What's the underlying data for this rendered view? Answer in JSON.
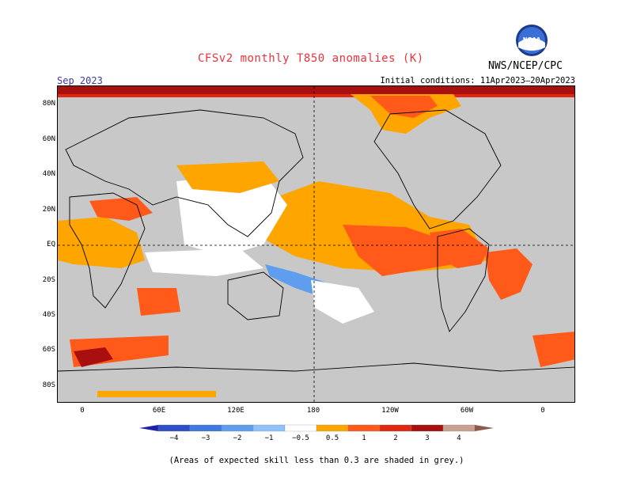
{
  "title": "CFSv2 monthly T850 anomalies (K)",
  "agency": "NWS/NCEP/CPC",
  "month": "Sep 2023",
  "initial_conditions": "Initial conditions: 11Apr2023–20Apr2023",
  "logo_text": "NOAA",
  "lat_labels": [
    "80N",
    "60N",
    "40N",
    "20N",
    "EQ",
    "20S",
    "40S",
    "60S",
    "80S"
  ],
  "lon_labels": [
    "0",
    "60E",
    "120E",
    "180",
    "120W",
    "60W",
    "0"
  ],
  "colorbar": {
    "labels": [
      "−4",
      "−3",
      "−2",
      "−1",
      "−0.5",
      "0.5",
      "1",
      "2",
      "3",
      "4"
    ],
    "colors": [
      "#2020a8",
      "#2f4fc8",
      "#3f78e0",
      "#5f9eee",
      "#8ec2f8",
      "#ffffff",
      "#ffa500",
      "#ff5a1a",
      "#e02810",
      "#a80f0f",
      "#c8a090",
      "#8b5a4a"
    ]
  },
  "grey_color": "#c8c8c8",
  "footnote": "(Areas of expected skill less than 0.3 are shaded in grey.)"
}
